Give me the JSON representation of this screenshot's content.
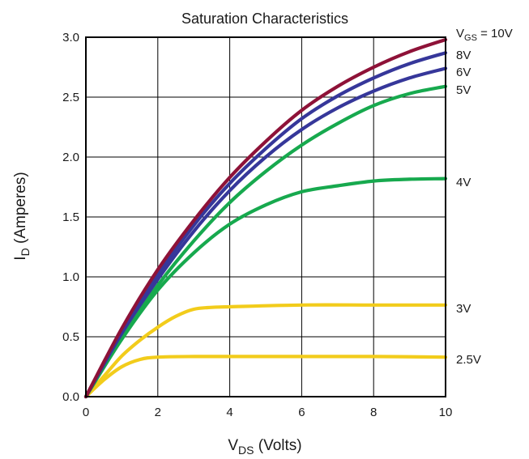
{
  "chart_data": {
    "type": "line",
    "title": "Saturation Characteristics",
    "xlabel": {
      "main": "V",
      "sub": "DS",
      "rest": " (Volts)"
    },
    "ylabel": {
      "main": "I",
      "sub": "D",
      "rest": " (Amperes)"
    },
    "xlim": [
      0,
      10
    ],
    "ylim": [
      0,
      3.0
    ],
    "xticks": [
      0,
      2,
      4,
      6,
      8,
      10
    ],
    "xtick_labels": [
      "0",
      "2",
      "4",
      "6",
      "8",
      "10"
    ],
    "yticks": [
      0,
      0.5,
      1.0,
      1.5,
      2.0,
      2.5,
      3.0
    ],
    "ytick_labels": [
      "0.0",
      "0.5",
      "1.0",
      "1.5",
      "2.0",
      "2.5",
      "3.0"
    ],
    "grid": true,
    "series_labels_position": "right",
    "series": [
      {
        "name": "2.5V",
        "label_main": "2.5V",
        "color": "#f2cc1b",
        "points": [
          [
            0,
            0
          ],
          [
            0.5,
            0.14
          ],
          [
            1,
            0.25
          ],
          [
            1.5,
            0.31
          ],
          [
            2,
            0.33
          ],
          [
            3,
            0.335
          ],
          [
            4,
            0.335
          ],
          [
            6,
            0.335
          ],
          [
            8,
            0.335
          ],
          [
            10,
            0.33
          ]
        ]
      },
      {
        "name": "3V",
        "label_main": "3V",
        "color": "#f2cc1b",
        "points": [
          [
            0,
            0
          ],
          [
            0.5,
            0.17
          ],
          [
            1,
            0.34
          ],
          [
            1.5,
            0.47
          ],
          [
            2,
            0.58
          ],
          [
            2.5,
            0.67
          ],
          [
            3,
            0.73
          ],
          [
            3.5,
            0.745
          ],
          [
            4,
            0.75
          ],
          [
            6,
            0.765
          ],
          [
            8,
            0.765
          ],
          [
            10,
            0.765
          ]
        ]
      },
      {
        "name": "4V",
        "label_main": "4V",
        "color": "#17a94e",
        "points": [
          [
            0,
            0
          ],
          [
            1,
            0.48
          ],
          [
            2,
            0.89
          ],
          [
            3,
            1.2
          ],
          [
            4,
            1.44
          ],
          [
            5,
            1.6
          ],
          [
            6,
            1.71
          ],
          [
            7,
            1.76
          ],
          [
            8,
            1.8
          ],
          [
            9,
            1.815
          ],
          [
            10,
            1.82
          ]
        ]
      },
      {
        "name": "5V",
        "label_main": "5V",
        "color": "#17a94e",
        "points": [
          [
            0,
            0
          ],
          [
            1,
            0.5
          ],
          [
            2,
            0.93
          ],
          [
            3,
            1.3
          ],
          [
            4,
            1.62
          ],
          [
            5,
            1.88
          ],
          [
            6,
            2.1
          ],
          [
            7,
            2.28
          ],
          [
            8,
            2.43
          ],
          [
            9,
            2.53
          ],
          [
            10,
            2.59
          ]
        ]
      },
      {
        "name": "6V",
        "label_main": "6V",
        "color": "#36379a",
        "points": [
          [
            0,
            0
          ],
          [
            1,
            0.53
          ],
          [
            2,
            0.98
          ],
          [
            3,
            1.38
          ],
          [
            4,
            1.72
          ],
          [
            5,
            2.0
          ],
          [
            6,
            2.23
          ],
          [
            7,
            2.41
          ],
          [
            8,
            2.55
          ],
          [
            9,
            2.66
          ],
          [
            10,
            2.74
          ]
        ]
      },
      {
        "name": "8V",
        "label_main": "8V",
        "color": "#36379a",
        "points": [
          [
            0,
            0
          ],
          [
            1,
            0.55
          ],
          [
            2,
            1.02
          ],
          [
            3,
            1.43
          ],
          [
            4,
            1.78
          ],
          [
            5,
            2.07
          ],
          [
            6,
            2.32
          ],
          [
            7,
            2.51
          ],
          [
            8,
            2.66
          ],
          [
            9,
            2.78
          ],
          [
            10,
            2.87
          ]
        ]
      },
      {
        "name": "VGS = 10V",
        "label_main": "V",
        "label_sub": "GS",
        "label_rest": " = 10V",
        "color": "#8e1238",
        "points": [
          [
            0,
            0
          ],
          [
            1,
            0.57
          ],
          [
            2,
            1.06
          ],
          [
            3,
            1.47
          ],
          [
            4,
            1.83
          ],
          [
            5,
            2.13
          ],
          [
            6,
            2.39
          ],
          [
            7,
            2.59
          ],
          [
            8,
            2.75
          ],
          [
            9,
            2.88
          ],
          [
            10,
            2.98
          ]
        ]
      }
    ]
  }
}
